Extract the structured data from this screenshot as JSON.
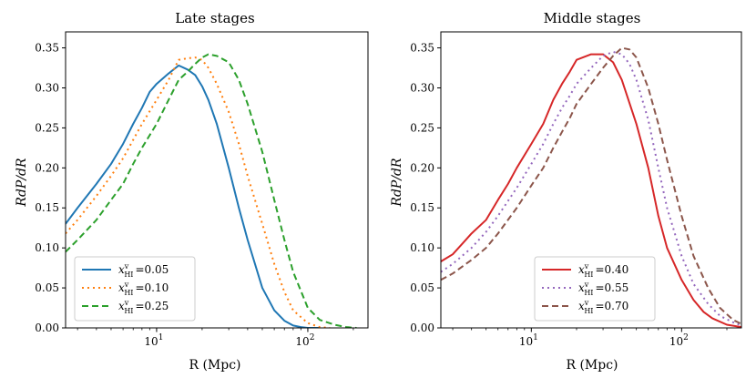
{
  "chart_data": [
    {
      "type": "line",
      "title": "Late stages",
      "xlabel": "R (Mpc)",
      "ylabel": "RdP/dR",
      "xscale": "log",
      "xlim": [
        2.5,
        250
      ],
      "ylim": [
        0,
        0.37
      ],
      "xticks": [
        {
          "value": 10,
          "label": "10",
          "sup": "1"
        },
        {
          "value": 100,
          "label": "10",
          "sup": "2"
        }
      ],
      "yticks": [
        0.0,
        0.05,
        0.1,
        0.15,
        0.2,
        0.25,
        0.3,
        0.35
      ],
      "ytick_labels": [
        "0.00",
        "0.05",
        "0.10",
        "0.15",
        "0.20",
        "0.25",
        "0.30",
        "0.35"
      ],
      "legend_position": "lower-left",
      "series": [
        {
          "name": "x_HI^v =0.05",
          "legend_var": "x",
          "legend_sub": "HI",
          "legend_sup": "v",
          "legend_value": "=0.05",
          "color": "#1f77b4",
          "style": "solid",
          "x": [
            2.5,
            3,
            4,
            5,
            6,
            7,
            8,
            9,
            10,
            12,
            14,
            16,
            18,
            20,
            22,
            25,
            30,
            35,
            40,
            50,
            60,
            70,
            80,
            90,
            100,
            110,
            120
          ],
          "y": [
            0.13,
            0.15,
            0.18,
            0.205,
            0.23,
            0.255,
            0.275,
            0.295,
            0.305,
            0.318,
            0.328,
            0.323,
            0.316,
            0.302,
            0.285,
            0.255,
            0.2,
            0.15,
            0.11,
            0.05,
            0.022,
            0.009,
            0.003,
            0.001,
            0.0,
            0.0,
            0.0
          ]
        },
        {
          "name": "x_HI^v =0.10",
          "legend_var": "x",
          "legend_sub": "HI",
          "legend_sup": "v",
          "legend_value": "=0.10",
          "color": "#ff7f0e",
          "style": "dotted",
          "x": [
            2.5,
            3,
            4,
            5,
            6,
            7,
            8,
            10,
            12,
            14,
            16,
            18,
            20,
            22,
            25,
            30,
            35,
            40,
            50,
            60,
            70,
            80,
            100,
            120,
            140
          ],
          "y": [
            0.118,
            0.135,
            0.165,
            0.19,
            0.212,
            0.235,
            0.255,
            0.285,
            0.31,
            0.335,
            0.337,
            0.338,
            0.335,
            0.325,
            0.305,
            0.27,
            0.23,
            0.19,
            0.13,
            0.08,
            0.045,
            0.022,
            0.006,
            0.001,
            0.0
          ]
        },
        {
          "name": "x_HI^v =0.25",
          "legend_var": "x",
          "legend_sub": "HI",
          "legend_sup": "v",
          "legend_value": "=0.25",
          "color": "#2ca02c",
          "style": "dashed",
          "x": [
            2.5,
            3,
            4,
            5,
            6,
            7,
            8,
            10,
            12,
            14,
            16,
            18,
            20,
            22,
            25,
            30,
            35,
            40,
            50,
            60,
            70,
            80,
            100,
            120,
            150,
            180,
            210
          ],
          "y": [
            0.095,
            0.11,
            0.135,
            0.16,
            0.18,
            0.205,
            0.225,
            0.255,
            0.285,
            0.31,
            0.32,
            0.33,
            0.338,
            0.342,
            0.34,
            0.332,
            0.31,
            0.28,
            0.22,
            0.16,
            0.11,
            0.07,
            0.025,
            0.01,
            0.004,
            0.001,
            0.0
          ]
        }
      ]
    },
    {
      "type": "line",
      "title": "Middle stages",
      "xlabel": "R (Mpc)",
      "ylabel": "RdP/dR",
      "xscale": "log",
      "xlim": [
        2.5,
        250
      ],
      "ylim": [
        0,
        0.37
      ],
      "xticks": [
        {
          "value": 10,
          "label": "10",
          "sup": "1"
        },
        {
          "value": 100,
          "label": "10",
          "sup": "2"
        }
      ],
      "yticks": [
        0.0,
        0.05,
        0.1,
        0.15,
        0.2,
        0.25,
        0.3,
        0.35
      ],
      "ytick_labels": [
        "0.00",
        "0.05",
        "0.10",
        "0.15",
        "0.20",
        "0.25",
        "0.30",
        "0.35"
      ],
      "legend_position": "lower-center",
      "series": [
        {
          "name": "x_HI^v =0.40",
          "legend_var": "x",
          "legend_sub": "HI",
          "legend_sup": "v",
          "legend_value": "=0.40",
          "color": "#d62728",
          "style": "solid",
          "x": [
            2.5,
            3,
            4,
            5,
            6,
            7,
            8,
            10,
            12,
            14,
            16,
            18,
            20,
            22,
            25,
            30,
            35,
            40,
            50,
            60,
            70,
            80,
            100,
            120,
            140,
            160,
            200,
            250
          ],
          "y": [
            0.083,
            0.092,
            0.118,
            0.135,
            0.16,
            0.18,
            0.2,
            0.23,
            0.255,
            0.285,
            0.305,
            0.32,
            0.335,
            0.338,
            0.342,
            0.342,
            0.332,
            0.31,
            0.255,
            0.2,
            0.14,
            0.1,
            0.06,
            0.035,
            0.02,
            0.012,
            0.004,
            0.001
          ]
        },
        {
          "name": "x_HI^v =0.55",
          "legend_var": "x",
          "legend_sub": "HI",
          "legend_sup": "v",
          "legend_value": "=0.55",
          "color": "#9467bd",
          "style": "dotted",
          "x": [
            2.5,
            3,
            4,
            5,
            6,
            8,
            10,
            12,
            14,
            16,
            18,
            20,
            25,
            30,
            35,
            40,
            45,
            50,
            60,
            70,
            80,
            100,
            120,
            150,
            180,
            220,
            250
          ],
          "y": [
            0.07,
            0.08,
            0.1,
            0.12,
            0.14,
            0.175,
            0.205,
            0.23,
            0.255,
            0.275,
            0.29,
            0.305,
            0.325,
            0.34,
            0.345,
            0.342,
            0.33,
            0.31,
            0.26,
            0.2,
            0.15,
            0.09,
            0.055,
            0.03,
            0.015,
            0.007,
            0.003
          ]
        },
        {
          "name": "x_HI^v =0.70",
          "legend_var": "x",
          "legend_sub": "HI",
          "legend_sup": "v",
          "legend_value": "=0.70",
          "color": "#8c564b",
          "style": "dashed",
          "x": [
            2.5,
            3,
            4,
            5,
            6,
            8,
            10,
            12,
            14,
            16,
            18,
            20,
            25,
            30,
            35,
            40,
            45,
            50,
            60,
            70,
            80,
            100,
            120,
            150,
            180,
            220,
            250
          ],
          "y": [
            0.06,
            0.068,
            0.085,
            0.1,
            0.118,
            0.15,
            0.178,
            0.2,
            0.225,
            0.245,
            0.262,
            0.28,
            0.305,
            0.325,
            0.34,
            0.35,
            0.348,
            0.338,
            0.3,
            0.255,
            0.21,
            0.14,
            0.09,
            0.05,
            0.025,
            0.01,
            0.005
          ]
        }
      ]
    }
  ]
}
